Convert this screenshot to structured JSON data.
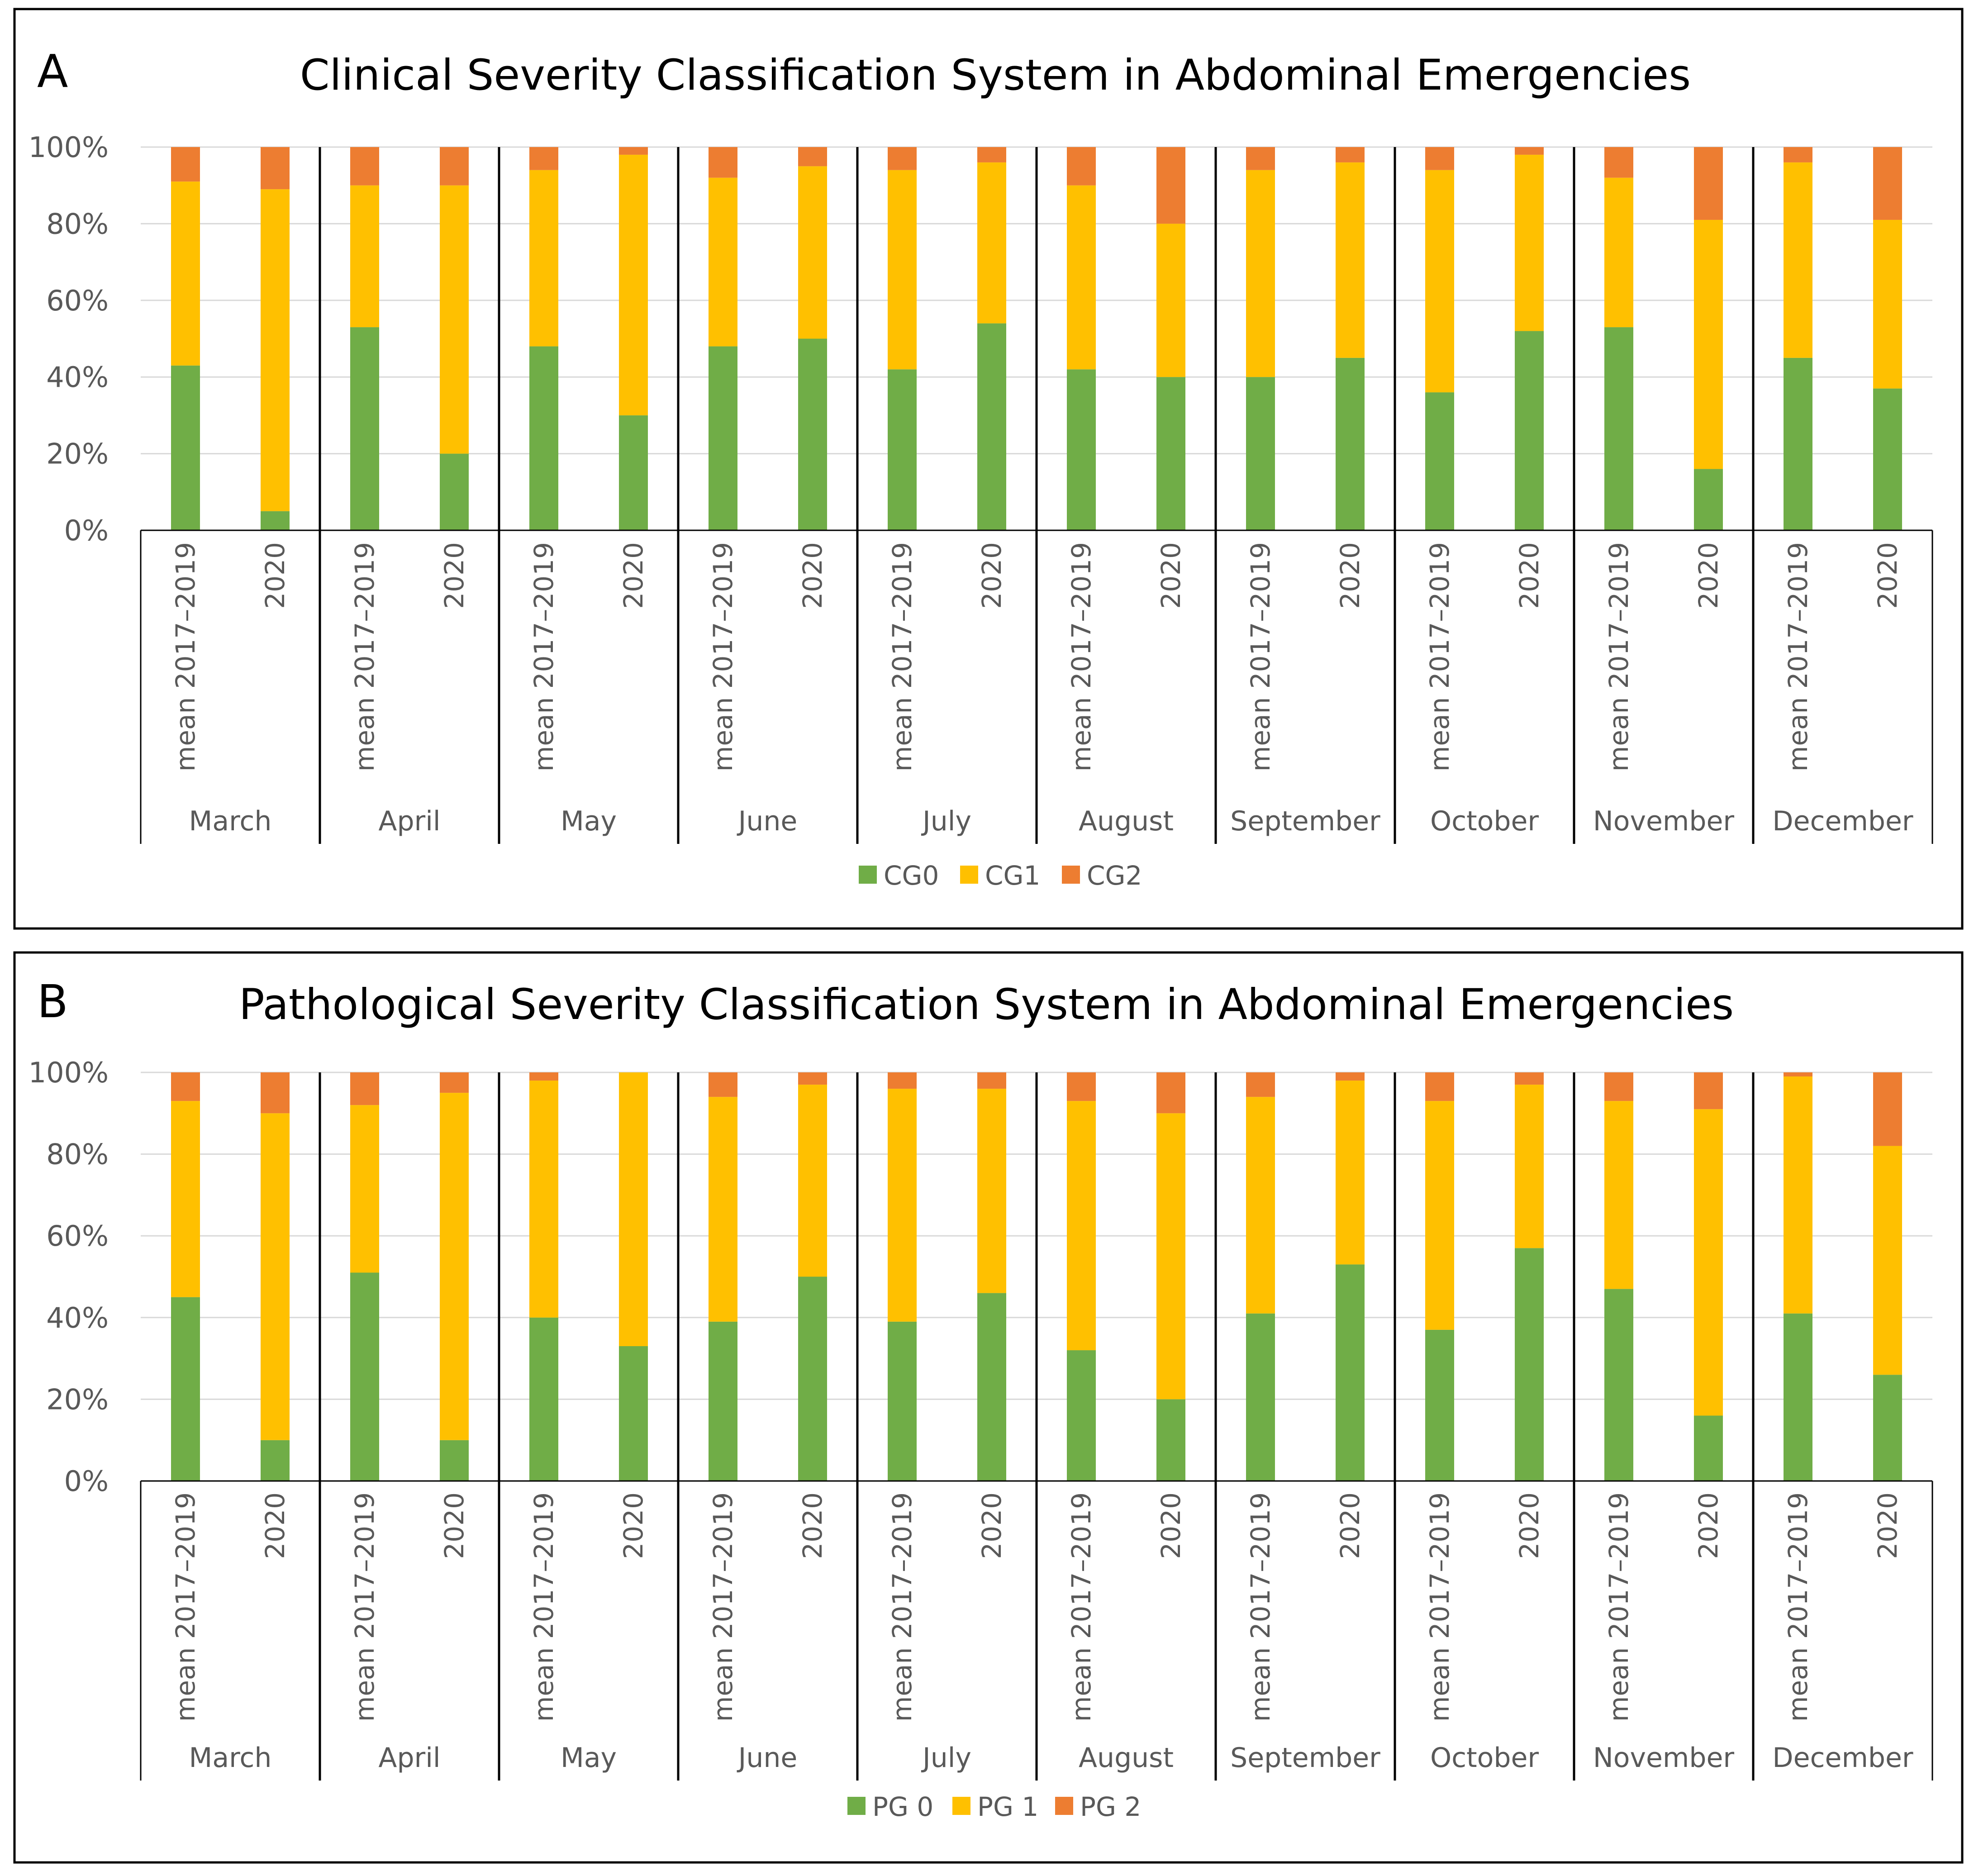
{
  "colors": {
    "g0": "#70ad47",
    "g1": "#ffc000",
    "g2": "#ed7d31"
  },
  "chart_data": [
    {
      "type": "bar",
      "stacked": true,
      "panel": "A",
      "title": "Clinical Severity Classification System in Abdominal Emergencies",
      "ylim": [
        0,
        100
      ],
      "yticks": [
        "0%",
        "20%",
        "40%",
        "60%",
        "80%",
        "100%"
      ],
      "months": [
        "March",
        "April",
        "May",
        "June",
        "July",
        "August",
        "September",
        "October",
        "November",
        "December"
      ],
      "bar_labels": [
        "mean 2017–2019",
        "2020"
      ],
      "legend": [
        "CG0",
        "CG1",
        "CG2"
      ],
      "series": [
        {
          "name": "CG0",
          "values": [
            43,
            5,
            53,
            20,
            48,
            30,
            48,
            50,
            42,
            54,
            42,
            40,
            40,
            45,
            36,
            52,
            53,
            16,
            45,
            37
          ]
        },
        {
          "name": "CG1",
          "values": [
            48,
            84,
            37,
            70,
            46,
            68,
            44,
            45,
            52,
            42,
            48,
            40,
            54,
            51,
            58,
            46,
            39,
            65,
            51,
            44
          ]
        },
        {
          "name": "CG2",
          "values": [
            9,
            11,
            10,
            10,
            6,
            2,
            8,
            5,
            6,
            4,
            10,
            20,
            6,
            4,
            6,
            2,
            8,
            19,
            4,
            19
          ]
        }
      ]
    },
    {
      "type": "bar",
      "stacked": true,
      "panel": "B",
      "title": "Pathological Severity Classification System in Abdominal Emergencies",
      "ylim": [
        0,
        100
      ],
      "yticks": [
        "0%",
        "20%",
        "40%",
        "60%",
        "80%",
        "100%"
      ],
      "months": [
        "March",
        "April",
        "May",
        "June",
        "July",
        "August",
        "September",
        "October",
        "November",
        "December"
      ],
      "bar_labels": [
        "mean 2017–2019",
        "2020"
      ],
      "legend": [
        "PG 0",
        "PG 1",
        "PG 2"
      ],
      "series": [
        {
          "name": "PG 0",
          "values": [
            45,
            10,
            51,
            10,
            40,
            33,
            39,
            50,
            39,
            46,
            32,
            20,
            41,
            53,
            37,
            57,
            47,
            16,
            41,
            26
          ]
        },
        {
          "name": "PG 1",
          "values": [
            48,
            80,
            41,
            85,
            58,
            67,
            55,
            47,
            57,
            50,
            61,
            70,
            53,
            45,
            56,
            40,
            46,
            75,
            58,
            56
          ]
        },
        {
          "name": "PG 2",
          "values": [
            7,
            10,
            8,
            5,
            2,
            0,
            6,
            3,
            4,
            4,
            7,
            10,
            6,
            2,
            7,
            3,
            7,
            9,
            1,
            18
          ]
        }
      ]
    }
  ]
}
